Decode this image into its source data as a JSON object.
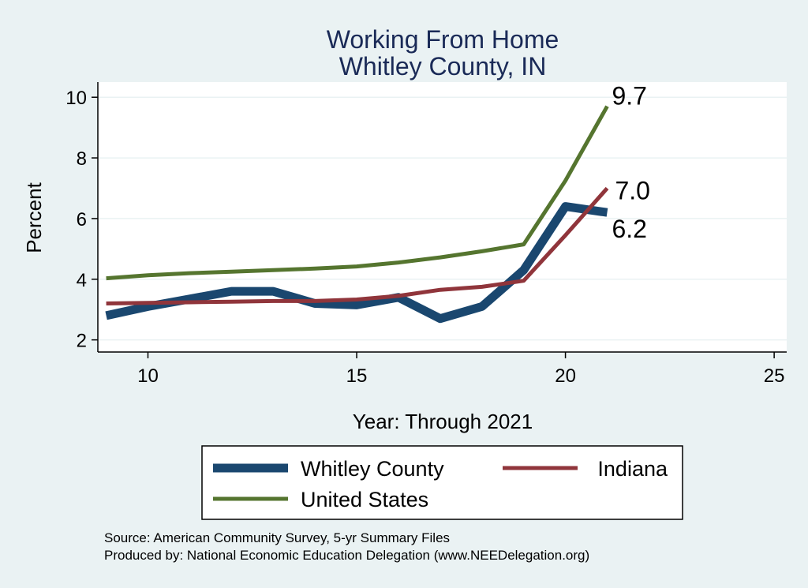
{
  "chart_data": {
    "type": "line",
    "title": [
      "Working From Home",
      "Whitley County, IN"
    ],
    "xlabel": "Year: Through 2021",
    "ylabel": "Percent",
    "xlim": [
      8.8,
      25.3
    ],
    "ylim": [
      1.6,
      10.5
    ],
    "xticks": [
      10,
      15,
      20,
      25
    ],
    "yticks": [
      2,
      4,
      6,
      8,
      10
    ],
    "grid": true,
    "legend": {
      "position": "bottom",
      "items": [
        "Whitley County",
        "Indiana",
        "United States"
      ]
    },
    "series": [
      {
        "name": "Whitley County",
        "color": "#1a476f",
        "width": 11,
        "x": [
          9,
          10,
          11,
          12,
          13,
          14,
          15,
          16,
          17,
          18,
          19,
          20,
          21
        ],
        "y": [
          2.8,
          3.1,
          3.35,
          3.6,
          3.6,
          3.2,
          3.15,
          3.4,
          2.7,
          3.1,
          4.3,
          6.4,
          6.2
        ],
        "end_label": "6.2"
      },
      {
        "name": "Indiana",
        "color": "#90353b",
        "width": 5,
        "x": [
          9,
          10,
          11,
          12,
          13,
          14,
          15,
          16,
          17,
          18,
          19,
          20,
          21
        ],
        "y": [
          3.2,
          3.22,
          3.24,
          3.26,
          3.28,
          3.28,
          3.33,
          3.45,
          3.65,
          3.75,
          3.95,
          5.45,
          7.0
        ],
        "end_label": "7.0"
      },
      {
        "name": "United States",
        "color": "#55752f",
        "width": 5,
        "x": [
          9,
          10,
          11,
          12,
          13,
          14,
          15,
          16,
          17,
          18,
          19,
          20,
          21
        ],
        "y": [
          4.03,
          4.13,
          4.2,
          4.25,
          4.3,
          4.35,
          4.42,
          4.55,
          4.72,
          4.92,
          5.15,
          7.25,
          9.7
        ],
        "end_label": "9.7"
      }
    ]
  },
  "notes": [
    "Source: American Community Survey, 5-yr Summary Files",
    "Produced by: National Economic Education Delegation (www.NEEDelegation.org)"
  ]
}
